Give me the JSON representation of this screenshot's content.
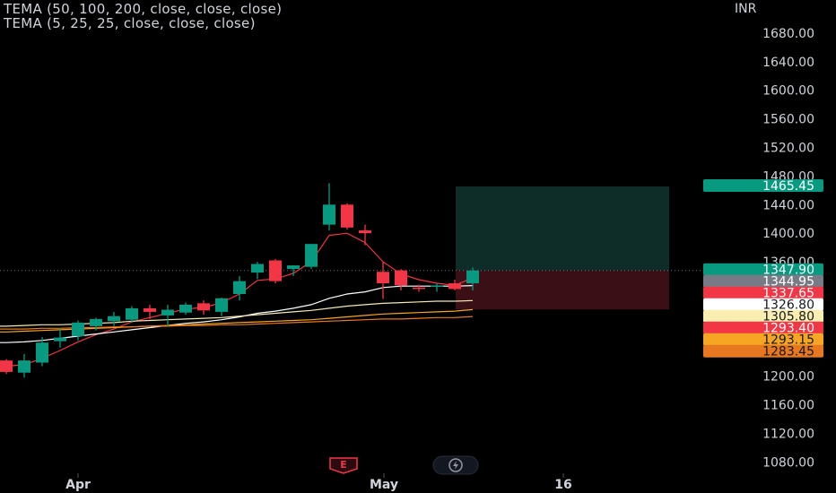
{
  "legend": {
    "line1": "TEMA (50, 100, 200, close, close, close)",
    "line2": "TEMA (5, 25, 25, close, close, close)"
  },
  "currency": "INR",
  "badges": {
    "earnings_letter": "E"
  },
  "colors": {
    "background": "#000000",
    "up": "#089981",
    "down": "#f23645",
    "grid_text": "#d1d4dc",
    "long_profit_zone": "#0e2c28",
    "long_loss_zone": "#3a1016"
  },
  "chart_data": {
    "type": "candlestick",
    "y_axis": {
      "ticks": [
        "1680.00",
        "1640.00",
        "1600.00",
        "1560.00",
        "1520.00",
        "1480.00",
        "1440.00",
        "1400.00",
        "1360.00",
        "1200.00",
        "1160.00",
        "1120.00",
        "1080.00"
      ],
      "range": [
        1070,
        1700
      ]
    },
    "x_axis": {
      "ticks": [
        "Apr",
        "May",
        "16"
      ]
    },
    "candles": [
      {
        "o": 1222,
        "h": 1224,
        "l": 1203,
        "c": 1206
      },
      {
        "o": 1205,
        "h": 1231,
        "l": 1198,
        "c": 1222
      },
      {
        "o": 1219,
        "h": 1255,
        "l": 1214,
        "c": 1247
      },
      {
        "o": 1249,
        "h": 1267,
        "l": 1240,
        "c": 1254
      },
      {
        "o": 1256,
        "h": 1278,
        "l": 1250,
        "c": 1275
      },
      {
        "o": 1270,
        "h": 1282,
        "l": 1264,
        "c": 1280
      },
      {
        "o": 1277,
        "h": 1290,
        "l": 1270,
        "c": 1284
      },
      {
        "o": 1279,
        "h": 1298,
        "l": 1275,
        "c": 1295
      },
      {
        "o": 1295,
        "h": 1300,
        "l": 1280,
        "c": 1290
      },
      {
        "o": 1285,
        "h": 1300,
        "l": 1270,
        "c": 1293
      },
      {
        "o": 1289,
        "h": 1303,
        "l": 1286,
        "c": 1300
      },
      {
        "o": 1302,
        "h": 1306,
        "l": 1286,
        "c": 1292
      },
      {
        "o": 1290,
        "h": 1310,
        "l": 1284,
        "c": 1309
      },
      {
        "o": 1315,
        "h": 1340,
        "l": 1306,
        "c": 1333
      },
      {
        "o": 1345,
        "h": 1360,
        "l": 1336,
        "c": 1357
      },
      {
        "o": 1362,
        "h": 1364,
        "l": 1330,
        "c": 1333
      },
      {
        "o": 1350,
        "h": 1355,
        "l": 1340,
        "c": 1355
      },
      {
        "o": 1353,
        "h": 1385,
        "l": 1350,
        "c": 1385
      },
      {
        "o": 1412,
        "h": 1470,
        "l": 1404,
        "c": 1440
      },
      {
        "o": 1440,
        "h": 1442,
        "l": 1405,
        "c": 1408
      },
      {
        "o": 1404,
        "h": 1412,
        "l": 1383,
        "c": 1400
      },
      {
        "o": 1346,
        "h": 1360,
        "l": 1308,
        "c": 1330
      },
      {
        "o": 1348,
        "h": 1350,
        "l": 1320,
        "c": 1327
      },
      {
        "o": 1324,
        "h": 1328,
        "l": 1318,
        "c": 1322
      },
      {
        "o": 1327,
        "h": 1330,
        "l": 1318,
        "c": 1327
      },
      {
        "o": 1330,
        "h": 1335,
        "l": 1320,
        "c": 1322
      },
      {
        "o": 1330,
        "h": 1352,
        "l": 1320,
        "c": 1347.9
      }
    ],
    "indicators": [
      {
        "name": "TEMA 5",
        "color": "#f23645",
        "values": [
          1214,
          1216,
          1225,
          1236,
          1248,
          1258,
          1266,
          1276,
          1282,
          1288,
          1294,
          1296,
          1303,
          1315,
          1334,
          1336,
          1344,
          1360,
          1397,
          1400,
          1387,
          1360,
          1343,
          1335,
          1330,
          1327,
          1337.65
        ]
      },
      {
        "name": "TEMA 25",
        "color": "#ffffff",
        "values": [
          1247,
          1248,
          1250,
          1253,
          1256,
          1259,
          1262,
          1265,
          1268,
          1271,
          1274,
          1276,
          1279,
          1283,
          1288,
          1291,
          1295,
          1300,
          1309,
          1315,
          1318,
          1324,
          1326,
          1326,
          1326,
          1326,
          1326.8
        ]
      },
      {
        "name": "TEMA 50",
        "color": "#f5e9b4",
        "values": [
          1270,
          1271,
          1272,
          1272,
          1273,
          1274,
          1275,
          1277,
          1278,
          1279,
          1280,
          1281,
          1282,
          1284,
          1286,
          1288,
          1290,
          1292,
          1295,
          1298,
          1300,
          1302,
          1303,
          1304,
          1305,
          1305,
          1305.8
        ]
      },
      {
        "name": "TEMA 100",
        "color": "#f6a623",
        "values": [
          1262,
          1263,
          1264,
          1265,
          1266,
          1267,
          1268,
          1269,
          1270,
          1271,
          1272,
          1273,
          1274,
          1275,
          1276,
          1277,
          1278,
          1279,
          1281,
          1283,
          1285,
          1287,
          1288,
          1289,
          1290,
          1291,
          1293.15
        ]
      },
      {
        "name": "TEMA 200",
        "color": "#e8781f",
        "values": [
          1266,
          1266,
          1267,
          1267,
          1268,
          1268,
          1269,
          1269,
          1270,
          1270,
          1271,
          1271,
          1272,
          1272,
          1273,
          1274,
          1275,
          1276,
          1277,
          1278,
          1279,
          1280,
          1280,
          1281,
          1282,
          1282,
          1283.45
        ]
      }
    ],
    "position": {
      "type": "long",
      "entry": 1347.9,
      "target": 1465.45,
      "stop": 1293.4
    },
    "price_labels": [
      {
        "value": "1465.45",
        "price": 1465.45,
        "bg": "#089981",
        "fg": "#ffffff"
      },
      {
        "value": "1347.90",
        "price": 1347.9,
        "bg": "#089981",
        "fg": "#ffffff"
      },
      {
        "value": "1344.95",
        "price": 1344.95,
        "bg": "#787b86",
        "fg": "#ffffff"
      },
      {
        "value": "1337.65",
        "price": 1337.65,
        "bg": "#f23645",
        "fg": "#ffffff"
      },
      {
        "value": "1326.80",
        "price": 1326.8,
        "bg": "#ffffff",
        "fg": "#131722"
      },
      {
        "value": "1305.80",
        "price": 1305.8,
        "bg": "#f9eeb0",
        "fg": "#131722"
      },
      {
        "value": "1293.40",
        "price": 1293.4,
        "bg": "#f23645",
        "fg": "#ffffff"
      },
      {
        "value": "1293.15",
        "price": 1293.15,
        "bg": "#f6a623",
        "fg": "#131722"
      },
      {
        "value": "1283.45",
        "price": 1283.45,
        "bg": "#e8781f",
        "fg": "#131722"
      }
    ]
  }
}
